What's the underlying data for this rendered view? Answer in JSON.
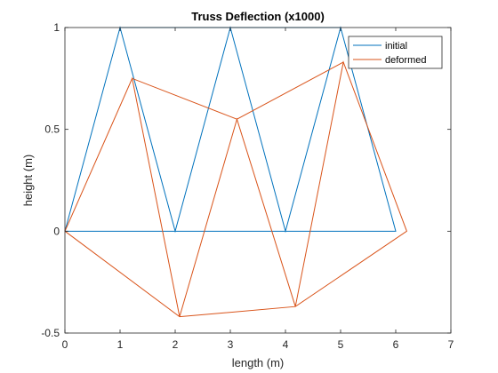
{
  "chart_data": {
    "type": "line",
    "title": "Truss Deflection (x1000)",
    "xlabel": "length (m)",
    "ylabel": "height (m)",
    "xlim": [
      0,
      7
    ],
    "ylim": [
      -0.5,
      1
    ],
    "xticks": [
      0,
      1,
      2,
      3,
      4,
      5,
      6,
      7
    ],
    "yticks": [
      -0.5,
      0,
      0.5,
      1
    ],
    "xtick_labels": [
      "0",
      "1",
      "2",
      "3",
      "4",
      "5",
      "6",
      "7"
    ],
    "ytick_labels": [
      "-0.5",
      "0",
      "0.5",
      "1"
    ],
    "grid": false,
    "legend_position": "top-right",
    "series": [
      {
        "name": "initial",
        "color": "#0072BD",
        "x": [
          0,
          2,
          4,
          6,
          5,
          3,
          1,
          0,
          1,
          2,
          3,
          4,
          5,
          6
        ],
        "y": [
          0,
          0,
          0,
          0,
          1,
          1,
          1,
          0,
          1,
          0,
          1,
          0,
          1,
          0
        ]
      },
      {
        "name": "deformed",
        "color": "#D95319",
        "x": [
          0,
          2.08,
          4.18,
          6.2,
          5.05,
          3.12,
          1.22,
          0,
          1.22,
          2.08,
          3.12,
          4.18,
          5.05,
          6.2
        ],
        "y": [
          0,
          -0.42,
          -0.37,
          0,
          0.83,
          0.55,
          0.75,
          0,
          0.75,
          -0.42,
          0.55,
          -0.37,
          0.83,
          0
        ]
      }
    ]
  }
}
